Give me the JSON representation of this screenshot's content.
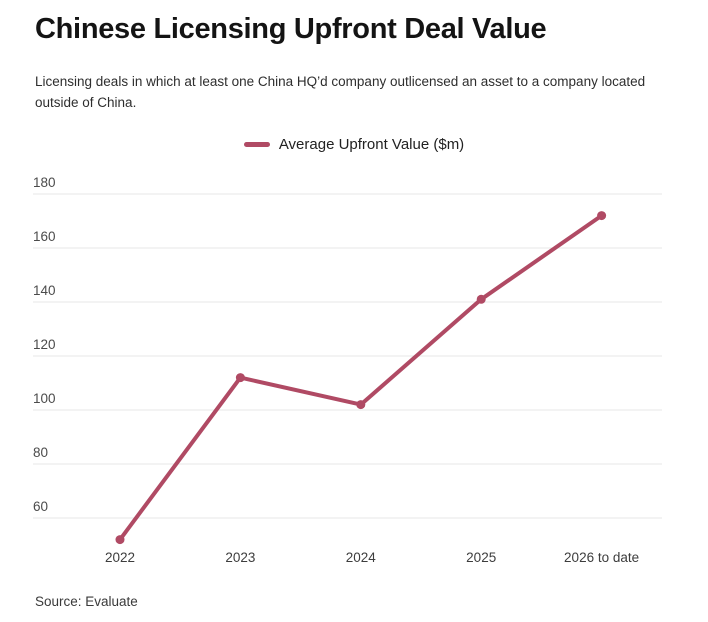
{
  "header": {
    "title": "Chinese Licensing Upfront Deal Value",
    "subtitle": "Licensing deals in which at least one China HQ’d company outlicensed an asset to a company located\noutside of China."
  },
  "legend": {
    "label": "Average Upfront Value ($m)"
  },
  "colors": {
    "accent": "#b04a64",
    "grid": "#e7e7e7",
    "ytick_text": "#4b4b4b",
    "xtick_text": "#3d3d3d",
    "title_text": "#141414"
  },
  "chart_data": {
    "type": "line",
    "title": "Chinese Licensing Upfront Deal Value",
    "categories": [
      "2022",
      "2023",
      "2024",
      "2025",
      "2026 to date"
    ],
    "series": [
      {
        "name": "Average Upfront Value ($m)",
        "values": [
          52,
          112,
          102,
          141,
          172
        ]
      }
    ],
    "yticks": [
      60,
      80,
      100,
      120,
      140,
      160,
      180
    ],
    "ylim": [
      47,
      188
    ],
    "xlabel": "",
    "ylabel": "",
    "grid": "horizontal-only",
    "legend_position": "top-center",
    "line_color": "#b04a64",
    "marker": "circle"
  },
  "footer": {
    "source": "Source: Evaluate"
  }
}
